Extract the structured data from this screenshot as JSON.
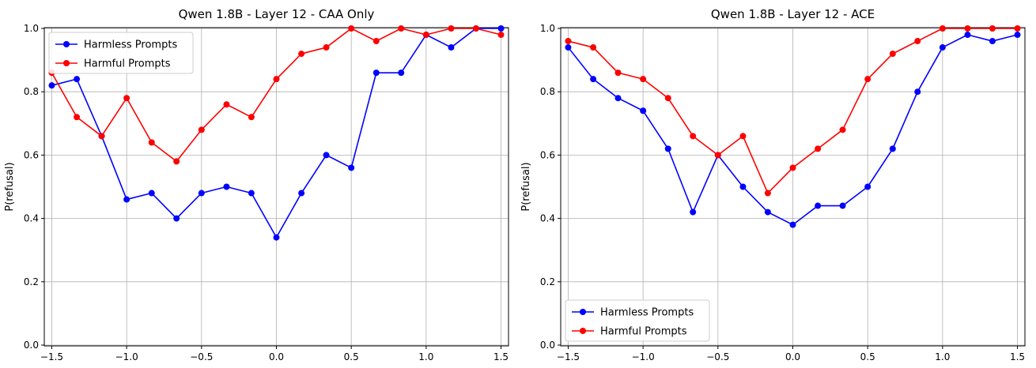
{
  "chart_data": [
    {
      "type": "line",
      "title": "Qwen 1.8B - Layer 12 - CAA Only",
      "xlabel": "",
      "ylabel": "P(refusal)",
      "xlim": [
        -1.55,
        1.55
      ],
      "ylim": [
        0.0,
        1.0
      ],
      "grid": true,
      "legend_position": "top-left",
      "x": [
        -1.5,
        -1.333,
        -1.167,
        -1.0,
        -0.833,
        -0.667,
        -0.5,
        -0.333,
        -0.167,
        0.0,
        0.167,
        0.333,
        0.5,
        0.667,
        0.833,
        1.0,
        1.167,
        1.333,
        1.5
      ],
      "xticks": [
        -1.5,
        -1.0,
        -0.5,
        0.0,
        0.5,
        1.0,
        1.5
      ],
      "xtick_labels": [
        "−1.5",
        "−1.0",
        "−0.5",
        "0.0",
        "0.5",
        "1.0",
        "1.5"
      ],
      "yticks": [
        0.0,
        0.2,
        0.4,
        0.6,
        0.8,
        1.0
      ],
      "ytick_labels": [
        "0.0",
        "0.2",
        "0.4",
        "0.6",
        "0.8",
        "1.0"
      ],
      "series": [
        {
          "name": "Harmless Prompts",
          "color": "#0000ff",
          "values": [
            0.82,
            0.84,
            0.66,
            0.46,
            0.48,
            0.4,
            0.48,
            0.5,
            0.48,
            0.34,
            0.48,
            0.6,
            0.56,
            0.86,
            0.86,
            0.98,
            0.94,
            1.0,
            1.0
          ]
        },
        {
          "name": "Harmful Prompts",
          "color": "#ff0000",
          "values": [
            0.86,
            0.72,
            0.66,
            0.78,
            0.64,
            0.58,
            0.68,
            0.76,
            0.72,
            0.84,
            0.92,
            0.94,
            1.0,
            0.96,
            1.0,
            0.98,
            1.0,
            1.0,
            0.98
          ]
        }
      ]
    },
    {
      "type": "line",
      "title": "Qwen 1.8B - Layer 12 - ACE",
      "xlabel": "",
      "ylabel": "P(refusal)",
      "xlim": [
        -1.55,
        1.55
      ],
      "ylim": [
        0.0,
        1.0
      ],
      "grid": true,
      "legend_position": "bottom-left",
      "x": [
        -1.5,
        -1.333,
        -1.167,
        -1.0,
        -0.833,
        -0.667,
        -0.5,
        -0.333,
        -0.167,
        0.0,
        0.167,
        0.333,
        0.5,
        0.667,
        0.833,
        1.0,
        1.167,
        1.333,
        1.5
      ],
      "xticks": [
        -1.5,
        -1.0,
        -0.5,
        0.0,
        0.5,
        1.0,
        1.5
      ],
      "xtick_labels": [
        "−1.5",
        "−1.0",
        "−0.5",
        "0.0",
        "0.5",
        "1.0",
        "1.5"
      ],
      "yticks": [
        0.0,
        0.2,
        0.4,
        0.6,
        0.8,
        1.0
      ],
      "ytick_labels": [
        "0.0",
        "0.2",
        "0.4",
        "0.6",
        "0.8",
        "1.0"
      ],
      "series": [
        {
          "name": "Harmless Prompts",
          "color": "#0000ff",
          "values": [
            0.94,
            0.84,
            0.78,
            0.74,
            0.62,
            0.42,
            0.6,
            0.5,
            0.42,
            0.38,
            0.44,
            0.44,
            0.5,
            0.62,
            0.8,
            0.94,
            0.98,
            0.96,
            0.98
          ]
        },
        {
          "name": "Harmful Prompts",
          "color": "#ff0000",
          "values": [
            0.96,
            0.94,
            0.86,
            0.84,
            0.78,
            0.66,
            0.6,
            0.66,
            0.48,
            0.56,
            0.62,
            0.68,
            0.84,
            0.92,
            0.96,
            1.0,
            1.0,
            1.0,
            1.0
          ]
        }
      ]
    }
  ]
}
